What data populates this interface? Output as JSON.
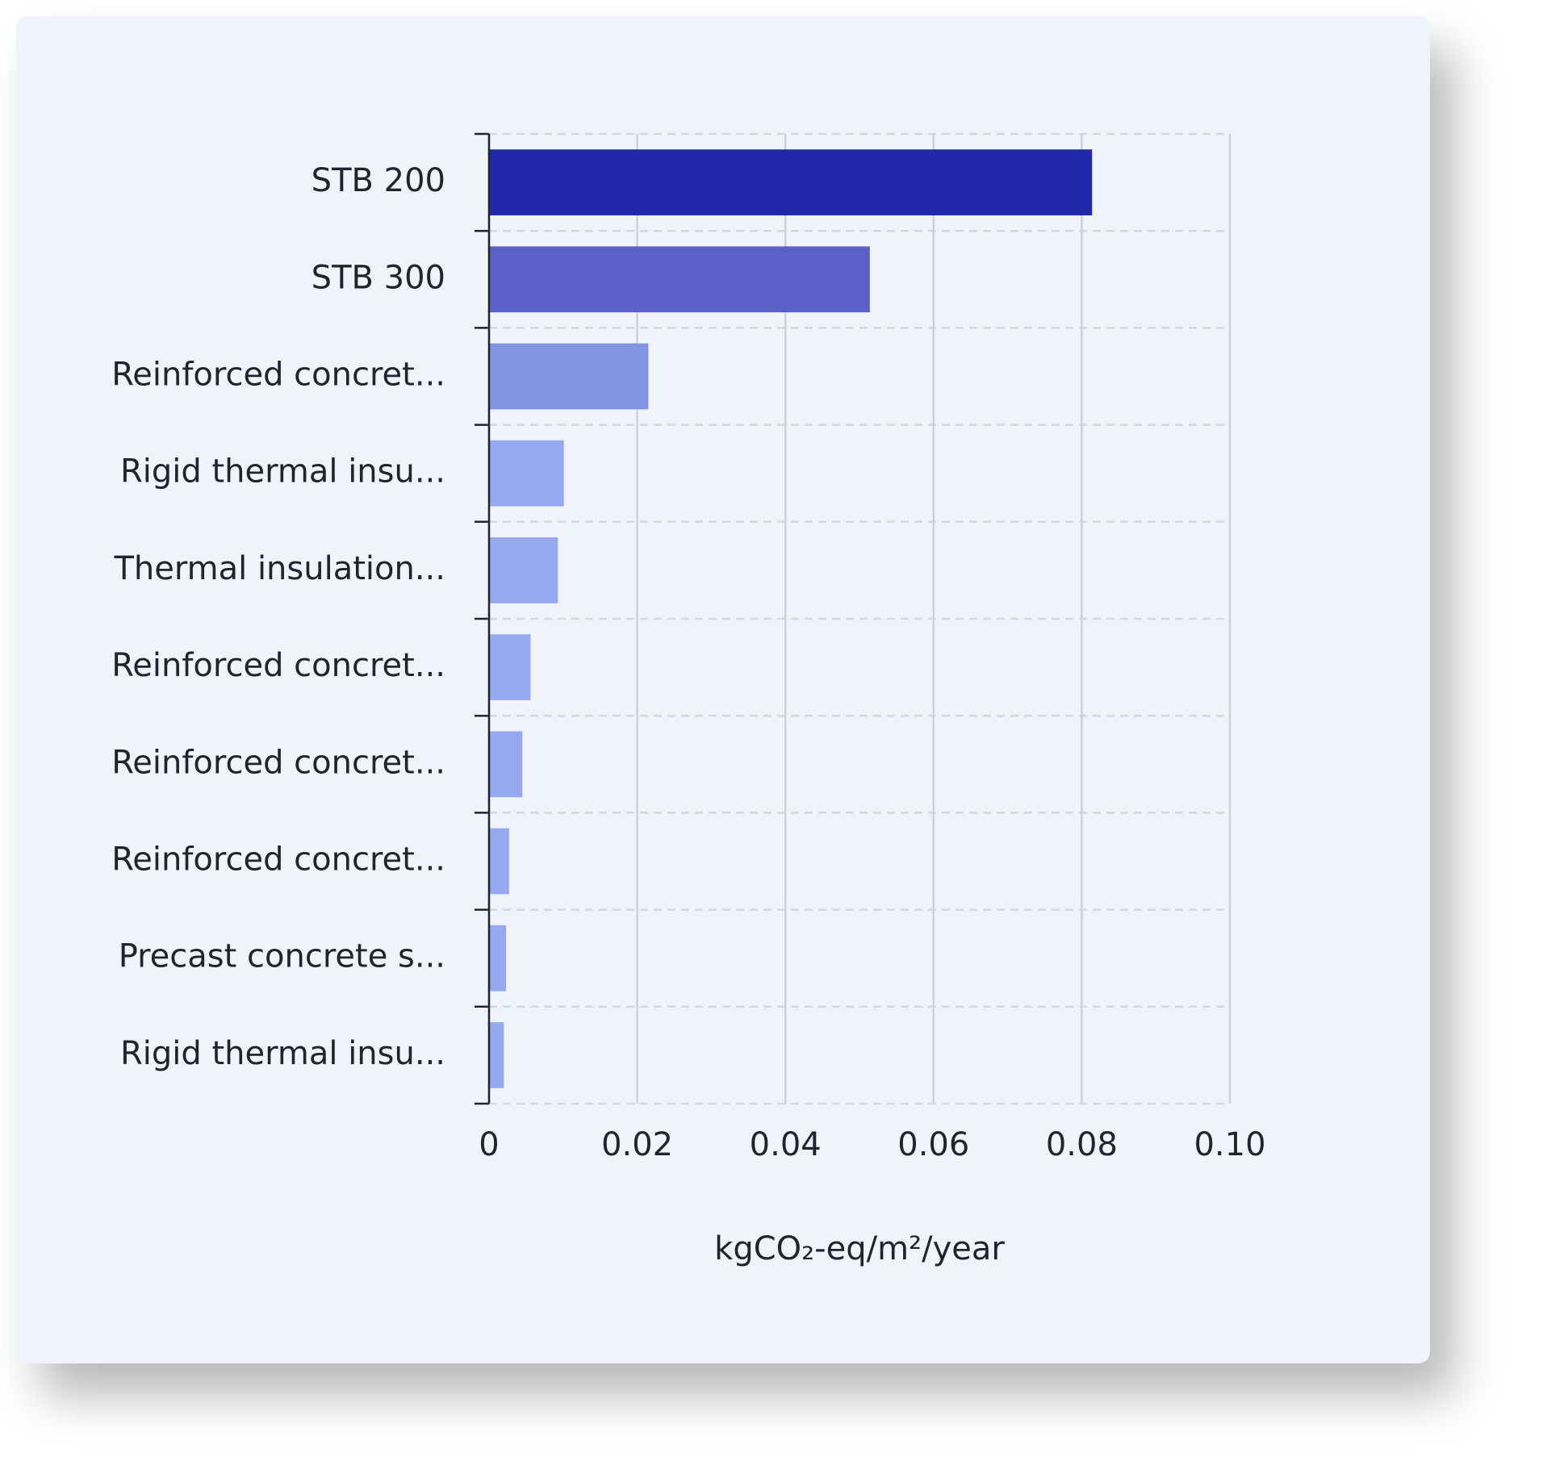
{
  "chart_data": {
    "type": "bar",
    "orientation": "horizontal",
    "categories": [
      "STB 200",
      "STB 300",
      "Reinforced concret...",
      "Rigid thermal insu...",
      "Thermal insulation...",
      "Reinforced concret...",
      "Reinforced concret...",
      "Reinforced concret...",
      "Precast concrete s...",
      "Rigid thermal insu..."
    ],
    "values": [
      0.0814,
      0.0514,
      0.0215,
      0.0101,
      0.0093,
      0.0056,
      0.0045,
      0.0027,
      0.0023,
      0.002
    ],
    "colors": [
      "#2129a8",
      "#5a60c8",
      "#8293e3",
      "#95a9f1",
      "#95a9f1",
      "#95a9f1",
      "#95a9f1",
      "#95a9f1",
      "#95a9f1",
      "#95a9f1"
    ],
    "xlabel": "kgCO₂-eq/m²/year",
    "xlim": [
      0,
      0.1
    ],
    "xticks": [
      0,
      0.02,
      0.04,
      0.06,
      0.08,
      {
        "value": 0.1,
        "label": "0.10"
      }
    ],
    "grid": true
  }
}
